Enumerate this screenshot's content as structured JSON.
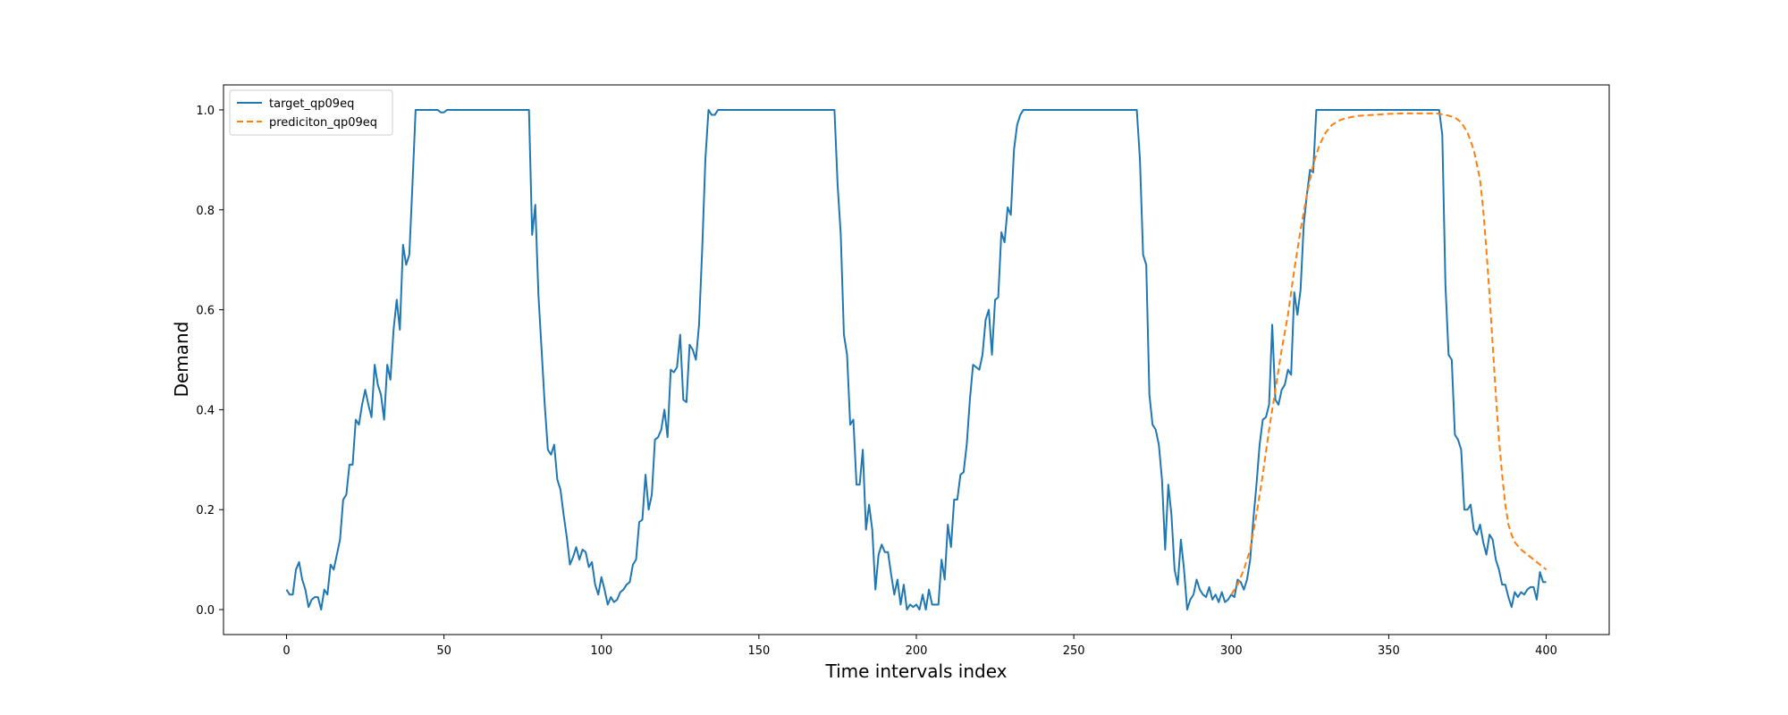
{
  "chart_data": {
    "type": "line",
    "title": "",
    "xlabel": "Time intervals index",
    "ylabel": "Demand",
    "xlim": [
      -20,
      420
    ],
    "ylim": [
      -0.05,
      1.05
    ],
    "xticks": [
      0,
      50,
      100,
      150,
      200,
      250,
      300,
      350,
      400
    ],
    "yticks": [
      0.0,
      0.2,
      0.4,
      0.6,
      0.8,
      1.0
    ],
    "xtick_labels": [
      "0",
      "50",
      "100",
      "150",
      "200",
      "250",
      "300",
      "350",
      "400"
    ],
    "ytick_labels": [
      "0.0",
      "0.2",
      "0.4",
      "0.6",
      "0.8",
      "1.0"
    ],
    "grid": false,
    "legend_position": "top-left",
    "series": [
      {
        "name": "target_qp09eq",
        "color": "#1f77b4",
        "style": "solid",
        "points": [
          [
            0,
            0.04
          ],
          [
            1,
            0.03
          ],
          [
            2,
            0.03
          ],
          [
            3,
            0.08
          ],
          [
            4,
            0.095
          ],
          [
            5,
            0.06
          ],
          [
            6,
            0.04
          ],
          [
            7,
            0.005
          ],
          [
            8,
            0.02
          ],
          [
            9,
            0.025
          ],
          [
            10,
            0.025
          ],
          [
            11,
            0.0
          ],
          [
            12,
            0.04
          ],
          [
            13,
            0.03
          ],
          [
            14,
            0.09
          ],
          [
            15,
            0.08
          ],
          [
            16,
            0.11
          ],
          [
            17,
            0.14
          ],
          [
            18,
            0.22
          ],
          [
            19,
            0.23
          ],
          [
            20,
            0.29
          ],
          [
            21,
            0.29
          ],
          [
            22,
            0.38
          ],
          [
            23,
            0.37
          ],
          [
            24,
            0.41
          ],
          [
            25,
            0.44
          ],
          [
            26,
            0.41
          ],
          [
            27,
            0.385
          ],
          [
            28,
            0.49
          ],
          [
            29,
            0.45
          ],
          [
            30,
            0.43
          ],
          [
            31,
            0.38
          ],
          [
            32,
            0.49
          ],
          [
            33,
            0.46
          ],
          [
            34,
            0.56
          ],
          [
            35,
            0.62
          ],
          [
            36,
            0.56
          ],
          [
            37,
            0.73
          ],
          [
            38,
            0.69
          ],
          [
            39,
            0.71
          ],
          [
            40,
            0.85
          ],
          [
            41,
            1.0
          ],
          [
            45,
            1.0
          ],
          [
            48,
            1.0
          ],
          [
            49,
            0.995
          ],
          [
            50,
            0.995
          ],
          [
            51,
            1.0
          ],
          [
            77,
            1.0
          ],
          [
            78,
            0.75
          ],
          [
            79,
            0.81
          ],
          [
            80,
            0.63
          ],
          [
            81,
            0.52
          ],
          [
            82,
            0.41
          ],
          [
            83,
            0.32
          ],
          [
            84,
            0.31
          ],
          [
            85,
            0.33
          ],
          [
            86,
            0.26
          ],
          [
            87,
            0.24
          ],
          [
            88,
            0.19
          ],
          [
            89,
            0.145
          ],
          [
            90,
            0.09
          ],
          [
            91,
            0.105
          ],
          [
            92,
            0.125
          ],
          [
            93,
            0.1
          ],
          [
            94,
            0.12
          ],
          [
            95,
            0.115
          ],
          [
            96,
            0.085
          ],
          [
            97,
            0.095
          ],
          [
            98,
            0.05
          ],
          [
            99,
            0.03
          ],
          [
            100,
            0.065
          ],
          [
            101,
            0.04
          ],
          [
            102,
            0.01
          ],
          [
            103,
            0.025
          ],
          [
            104,
            0.015
          ],
          [
            105,
            0.02
          ],
          [
            106,
            0.035
          ],
          [
            107,
            0.04
          ],
          [
            108,
            0.05
          ],
          [
            109,
            0.055
          ],
          [
            110,
            0.09
          ],
          [
            111,
            0.1
          ],
          [
            112,
            0.175
          ],
          [
            113,
            0.18
          ],
          [
            114,
            0.27
          ],
          [
            115,
            0.2
          ],
          [
            116,
            0.23
          ],
          [
            117,
            0.34
          ],
          [
            118,
            0.345
          ],
          [
            119,
            0.36
          ],
          [
            120,
            0.4
          ],
          [
            121,
            0.345
          ],
          [
            122,
            0.48
          ],
          [
            123,
            0.475
          ],
          [
            124,
            0.485
          ],
          [
            125,
            0.55
          ],
          [
            126,
            0.42
          ],
          [
            127,
            0.415
          ],
          [
            128,
            0.53
          ],
          [
            129,
            0.52
          ],
          [
            130,
            0.5
          ],
          [
            131,
            0.57
          ],
          [
            132,
            0.72
          ],
          [
            133,
            0.9
          ],
          [
            134,
            1.0
          ],
          [
            135,
            0.99
          ],
          [
            136,
            0.99
          ],
          [
            137,
            1.0
          ],
          [
            174,
            1.0
          ],
          [
            175,
            0.85
          ],
          [
            176,
            0.75
          ],
          [
            177,
            0.55
          ],
          [
            178,
            0.51
          ],
          [
            179,
            0.37
          ],
          [
            180,
            0.38
          ],
          [
            181,
            0.25
          ],
          [
            182,
            0.25
          ],
          [
            183,
            0.32
          ],
          [
            184,
            0.16
          ],
          [
            185,
            0.21
          ],
          [
            186,
            0.16
          ],
          [
            187,
            0.04
          ],
          [
            188,
            0.11
          ],
          [
            189,
            0.13
          ],
          [
            190,
            0.115
          ],
          [
            191,
            0.115
          ],
          [
            192,
            0.07
          ],
          [
            193,
            0.03
          ],
          [
            194,
            0.06
          ],
          [
            195,
            0.01
          ],
          [
            196,
            0.05
          ],
          [
            197,
            0.0
          ],
          [
            198,
            0.01
          ],
          [
            199,
            0.005
          ],
          [
            200,
            0.01
          ],
          [
            201,
            0.0
          ],
          [
            202,
            0.03
          ],
          [
            203,
            0.0
          ],
          [
            204,
            0.04
          ],
          [
            205,
            0.01
          ],
          [
            206,
            0.01
          ],
          [
            207,
            0.01
          ],
          [
            208,
            0.1
          ],
          [
            209,
            0.06
          ],
          [
            210,
            0.17
          ],
          [
            211,
            0.125
          ],
          [
            212,
            0.22
          ],
          [
            213,
            0.22
          ],
          [
            214,
            0.27
          ],
          [
            215,
            0.275
          ],
          [
            216,
            0.33
          ],
          [
            217,
            0.42
          ],
          [
            218,
            0.49
          ],
          [
            219,
            0.485
          ],
          [
            220,
            0.48
          ],
          [
            221,
            0.51
          ],
          [
            222,
            0.58
          ],
          [
            223,
            0.6
          ],
          [
            224,
            0.51
          ],
          [
            225,
            0.62
          ],
          [
            226,
            0.625
          ],
          [
            227,
            0.755
          ],
          [
            228,
            0.735
          ],
          [
            229,
            0.805
          ],
          [
            230,
            0.79
          ],
          [
            231,
            0.92
          ],
          [
            232,
            0.97
          ],
          [
            233,
            0.99
          ],
          [
            234,
            1.0
          ],
          [
            270,
            1.0
          ],
          [
            271,
            0.9
          ],
          [
            272,
            0.71
          ],
          [
            273,
            0.69
          ],
          [
            274,
            0.43
          ],
          [
            275,
            0.37
          ],
          [
            276,
            0.36
          ],
          [
            277,
            0.33
          ],
          [
            278,
            0.26
          ],
          [
            279,
            0.12
          ],
          [
            280,
            0.25
          ],
          [
            281,
            0.19
          ],
          [
            282,
            0.08
          ],
          [
            283,
            0.05
          ],
          [
            284,
            0.14
          ],
          [
            285,
            0.08
          ],
          [
            286,
            0.0
          ],
          [
            287,
            0.02
          ],
          [
            288,
            0.03
          ],
          [
            289,
            0.06
          ],
          [
            290,
            0.04
          ],
          [
            291,
            0.03
          ],
          [
            292,
            0.025
          ],
          [
            293,
            0.045
          ],
          [
            294,
            0.02
          ],
          [
            295,
            0.03
          ],
          [
            296,
            0.015
          ],
          [
            297,
            0.035
          ],
          [
            298,
            0.015
          ],
          [
            299,
            0.02
          ],
          [
            300,
            0.03
          ],
          [
            301,
            0.025
          ],
          [
            302,
            0.06
          ],
          [
            303,
            0.055
          ],
          [
            304,
            0.04
          ],
          [
            305,
            0.06
          ],
          [
            306,
            0.1
          ],
          [
            307,
            0.18
          ],
          [
            308,
            0.25
          ],
          [
            309,
            0.33
          ],
          [
            310,
            0.38
          ],
          [
            311,
            0.385
          ],
          [
            312,
            0.41
          ],
          [
            313,
            0.57
          ],
          [
            314,
            0.42
          ],
          [
            315,
            0.41
          ],
          [
            316,
            0.44
          ],
          [
            317,
            0.45
          ],
          [
            318,
            0.48
          ],
          [
            319,
            0.47
          ],
          [
            320,
            0.635
          ],
          [
            321,
            0.59
          ],
          [
            322,
            0.64
          ],
          [
            323,
            0.77
          ],
          [
            324,
            0.83
          ],
          [
            325,
            0.88
          ],
          [
            326,
            0.875
          ],
          [
            327,
            1.0
          ],
          [
            366,
            1.0
          ],
          [
            367,
            0.95
          ],
          [
            368,
            0.65
          ],
          [
            369,
            0.51
          ],
          [
            370,
            0.5
          ],
          [
            371,
            0.35
          ],
          [
            372,
            0.34
          ],
          [
            373,
            0.32
          ],
          [
            374,
            0.2
          ],
          [
            375,
            0.2
          ],
          [
            376,
            0.21
          ],
          [
            377,
            0.16
          ],
          [
            378,
            0.15
          ],
          [
            379,
            0.17
          ],
          [
            380,
            0.135
          ],
          [
            381,
            0.11
          ],
          [
            382,
            0.15
          ],
          [
            383,
            0.14
          ],
          [
            384,
            0.1
          ],
          [
            385,
            0.08
          ],
          [
            386,
            0.05
          ],
          [
            387,
            0.05
          ],
          [
            388,
            0.025
          ],
          [
            389,
            0.005
          ],
          [
            390,
            0.035
          ],
          [
            391,
            0.025
          ],
          [
            392,
            0.035
          ],
          [
            393,
            0.03
          ],
          [
            394,
            0.04
          ],
          [
            395,
            0.045
          ],
          [
            396,
            0.045
          ],
          [
            397,
            0.02
          ],
          [
            398,
            0.075
          ],
          [
            399,
            0.055
          ],
          [
            400,
            0.055
          ]
        ]
      },
      {
        "name": "prediciton_qp09eq",
        "color": "#ff7f0e",
        "style": "dashed",
        "points": [
          [
            300,
            0.03
          ],
          [
            302,
            0.05
          ],
          [
            304,
            0.08
          ],
          [
            306,
            0.12
          ],
          [
            308,
            0.19
          ],
          [
            310,
            0.27
          ],
          [
            312,
            0.36
          ],
          [
            314,
            0.44
          ],
          [
            316,
            0.52
          ],
          [
            318,
            0.59
          ],
          [
            320,
            0.68
          ],
          [
            322,
            0.76
          ],
          [
            324,
            0.83
          ],
          [
            326,
            0.89
          ],
          [
            328,
            0.93
          ],
          [
            330,
            0.955
          ],
          [
            332,
            0.97
          ],
          [
            334,
            0.978
          ],
          [
            336,
            0.983
          ],
          [
            340,
            0.988
          ],
          [
            345,
            0.99
          ],
          [
            350,
            0.992
          ],
          [
            355,
            0.993
          ],
          [
            360,
            0.993
          ],
          [
            365,
            0.993
          ],
          [
            368,
            0.99
          ],
          [
            371,
            0.985
          ],
          [
            373,
            0.975
          ],
          [
            375,
            0.955
          ],
          [
            377,
            0.92
          ],
          [
            379,
            0.86
          ],
          [
            380,
            0.8
          ],
          [
            381,
            0.72
          ],
          [
            382,
            0.63
          ],
          [
            383,
            0.53
          ],
          [
            384,
            0.43
          ],
          [
            385,
            0.34
          ],
          [
            386,
            0.27
          ],
          [
            387,
            0.21
          ],
          [
            388,
            0.17
          ],
          [
            389,
            0.15
          ],
          [
            390,
            0.135
          ],
          [
            392,
            0.12
          ],
          [
            394,
            0.11
          ],
          [
            396,
            0.1
          ],
          [
            398,
            0.09
          ],
          [
            400,
            0.08
          ]
        ]
      }
    ]
  }
}
